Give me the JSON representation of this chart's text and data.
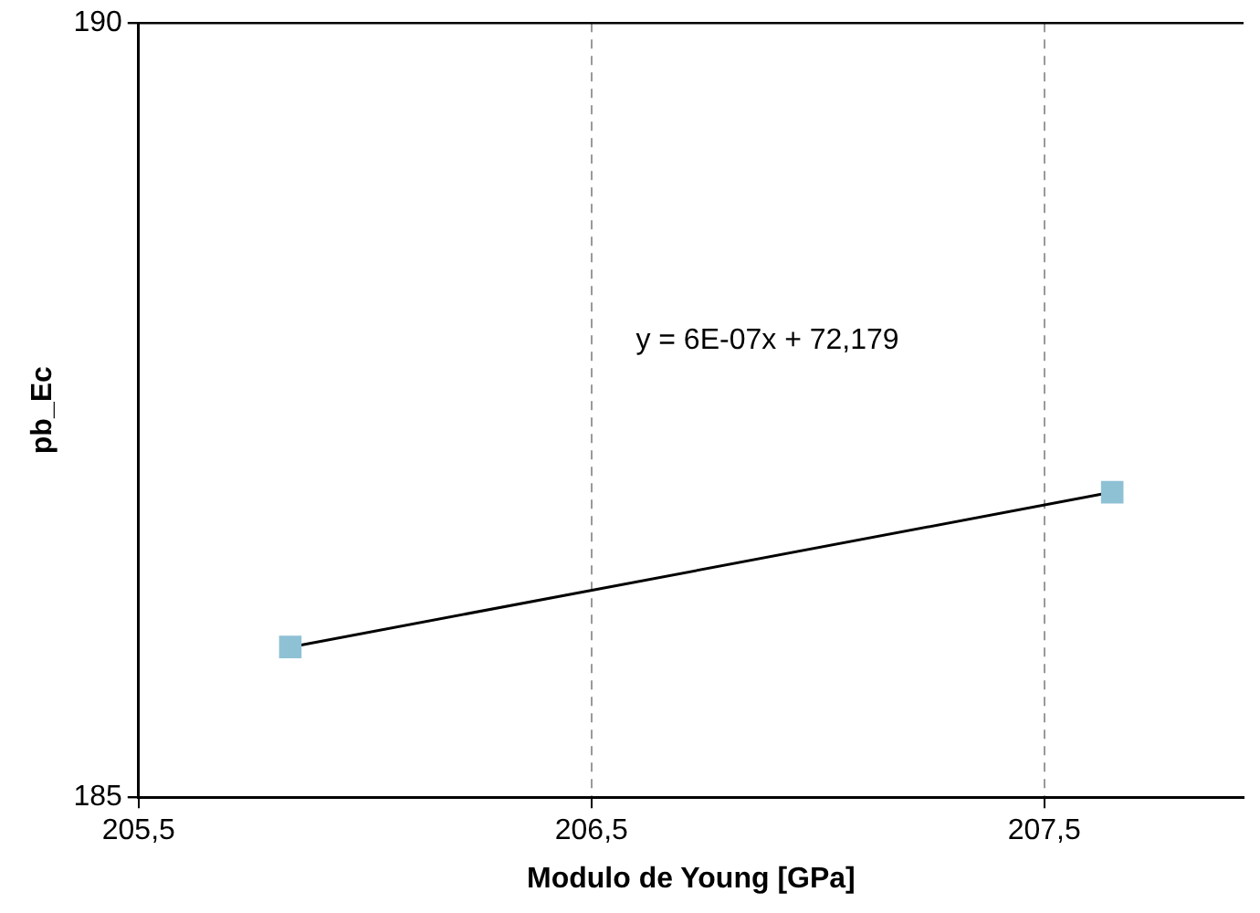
{
  "chart_data": {
    "type": "scatter",
    "xlabel": "Modulo de Young [GPa]",
    "ylabel": "pb_Ec",
    "xlim": [
      205.5,
      207.94
    ],
    "ylim": [
      185,
      190
    ],
    "xticks": [
      {
        "value": 205.5,
        "label": "205,5"
      },
      {
        "value": 206.5,
        "label": "206,5"
      },
      {
        "value": 207.5,
        "label": "207,5"
      }
    ],
    "yticks": [
      185,
      190
    ],
    "grid": true,
    "legend": false,
    "x": [
      205.835,
      207.65
    ],
    "series": [
      {
        "type": "scatter",
        "color": "#8fc1d5",
        "marker": "square",
        "values": [
          185.97,
          186.97
        ]
      },
      {
        "type": "line",
        "color": "#000000",
        "marker": "none",
        "line_style": "solid",
        "values": [
          185.97,
          186.97
        ]
      }
    ],
    "annotations": [
      "y = 6E-07x + 72,179"
    ]
  }
}
